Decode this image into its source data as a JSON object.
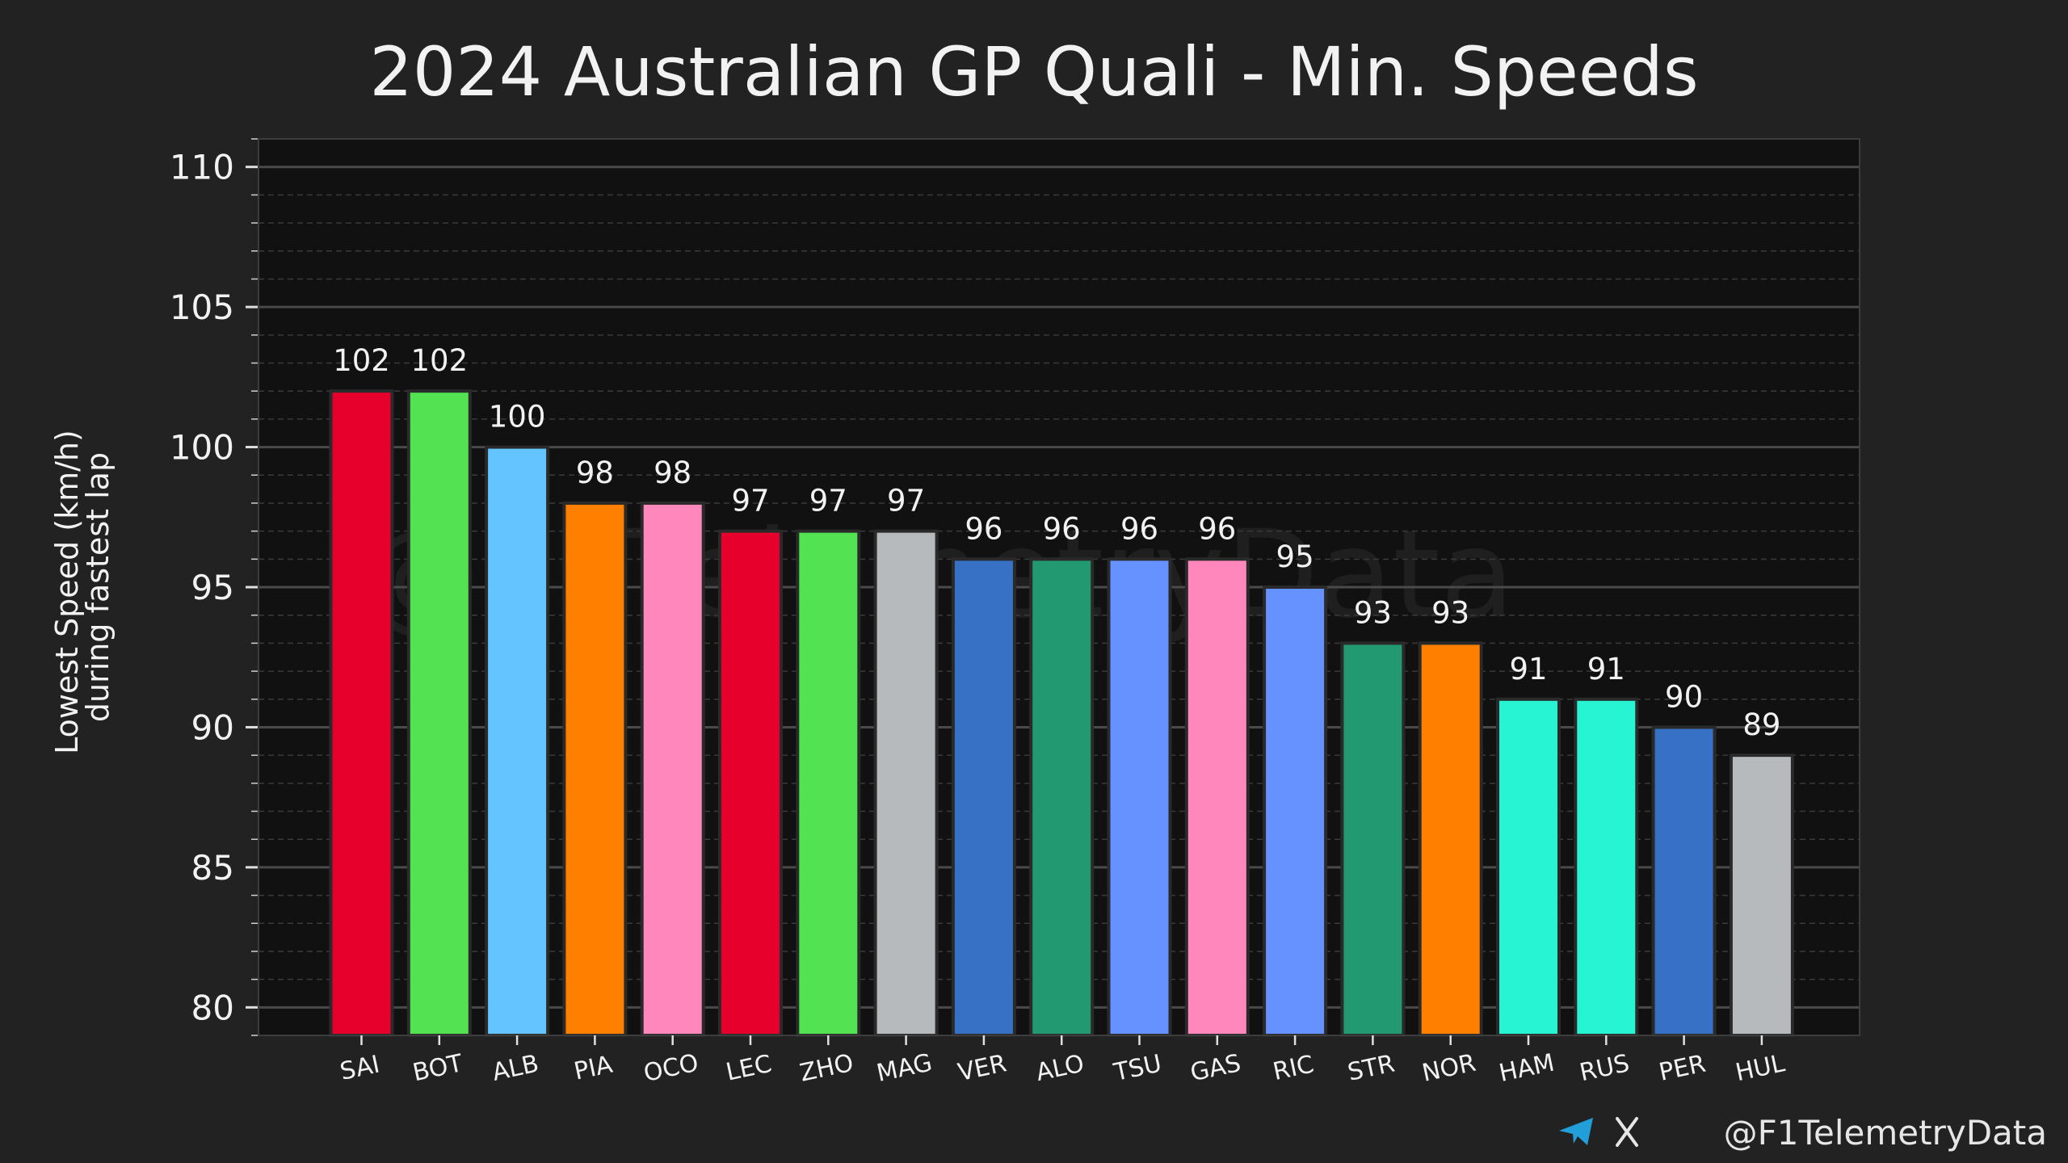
{
  "chart_data": {
    "type": "bar",
    "title": "2024 Australian GP Quali - Min. Speeds",
    "ylabel_lines": [
      "Lowest Speed (km/h)",
      "during fastest lap"
    ],
    "xlabel": "",
    "ylim": [
      79,
      111
    ],
    "yticks": [
      80,
      85,
      90,
      95,
      100,
      105,
      110
    ],
    "grid": true,
    "legend": "none",
    "categories": [
      "SAI",
      "BOT",
      "ALB",
      "PIA",
      "OCO",
      "LEC",
      "ZHO",
      "MAG",
      "VER",
      "ALO",
      "TSU",
      "GAS",
      "RIC",
      "STR",
      "NOR",
      "HAM",
      "RUS",
      "PER",
      "HUL"
    ],
    "values": [
      102,
      102,
      100,
      98,
      98,
      97,
      97,
      97,
      96,
      96,
      96,
      96,
      95,
      93,
      93,
      91,
      91,
      90,
      89
    ],
    "colors": [
      "#e8002d",
      "#52e252",
      "#64c4ff",
      "#ff8000",
      "#ff87bc",
      "#e8002d",
      "#52e252",
      "#b6babd",
      "#3671c6",
      "#229971",
      "#6692ff",
      "#ff87bc",
      "#6692ff",
      "#229971",
      "#ff8000",
      "#27f4d2",
      "#27f4d2",
      "#3671c6",
      "#b6babd"
    ]
  },
  "watermark": "@F1TelemetryData",
  "footer": {
    "handle": "@F1TelemetryData",
    "icons": [
      "telegram-icon",
      "x-logo-icon"
    ],
    "telegram_color": "#229ed9"
  }
}
